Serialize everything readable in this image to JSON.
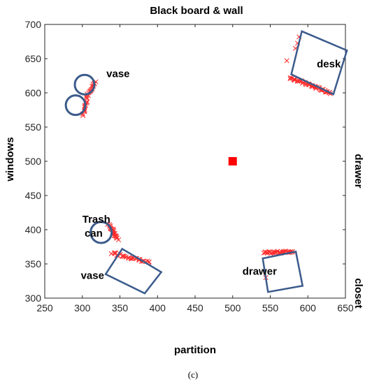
{
  "chart_data": {
    "type": "scatter",
    "title": "Black board & wall",
    "xlabel": "partition",
    "ylabel": "windows",
    "right_label_top": "drawer",
    "right_label_bottom": "closet",
    "caption": "(c)",
    "xlim": [
      250,
      650
    ],
    "ylim": [
      300,
      700
    ],
    "x_ticks": [
      250,
      300,
      350,
      400,
      450,
      500,
      550,
      600,
      650
    ],
    "y_ticks": [
      300,
      350,
      400,
      450,
      500,
      550,
      600,
      650,
      700
    ],
    "grid": false,
    "colors": {
      "obstacle": "#3b5b8b",
      "points": "#ff2a2a",
      "center": "#ff0000"
    },
    "center_point": {
      "x": 500,
      "y": 500
    },
    "circles": [
      {
        "name": "vase",
        "x": 303,
        "y": 612,
        "r": 13
      },
      {
        "name": "vase",
        "x": 291,
        "y": 582,
        "r": 13
      },
      {
        "name": "Trash can",
        "x": 325,
        "y": 396,
        "r": 14
      }
    ],
    "rectangles": [
      {
        "name": "desk",
        "corners": [
          [
            592,
            690
          ],
          [
            652,
            662
          ],
          [
            634,
            598
          ],
          [
            578,
            627
          ]
        ]
      },
      {
        "name": "drawer",
        "corners": [
          [
            540,
            358
          ],
          [
            584,
            368
          ],
          [
            593,
            318
          ],
          [
            547,
            309
          ]
        ]
      },
      {
        "name": "vase",
        "corners": [
          [
            331,
            335
          ],
          [
            353,
            372
          ],
          [
            405,
            338
          ],
          [
            383,
            307
          ]
        ]
      }
    ],
    "point_clusters": [
      {
        "from": [
          318,
          616
        ],
        "to": [
          305,
          594
        ],
        "n": 16
      },
      {
        "from": [
          307,
          590
        ],
        "to": [
          301,
          568
        ],
        "n": 12
      },
      {
        "from": [
          335,
          408
        ],
        "to": [
          347,
          386
        ],
        "n": 24
      },
      {
        "from": [
          340,
          366
        ],
        "to": [
          390,
          352
        ],
        "n": 30
      },
      {
        "from": [
          541,
          366
        ],
        "to": [
          580,
          368
        ],
        "n": 32
      },
      {
        "from": [
          544,
          330
        ],
        "to": [
          544,
          330
        ],
        "n": 1
      },
      {
        "from": [
          577,
          622
        ],
        "to": [
          630,
          600
        ],
        "n": 48
      },
      {
        "from": [
          585,
          665
        ],
        "to": [
          588,
          683
        ],
        "n": 3
      },
      {
        "from": [
          572,
          647
        ],
        "to": [
          572,
          647
        ],
        "n": 1
      }
    ],
    "annotations": [
      {
        "text": "vase",
        "x": 332,
        "y": 623
      },
      {
        "text": "desk",
        "x": 612,
        "y": 637
      },
      {
        "text": "Trash",
        "x": 300,
        "y": 410
      },
      {
        "text": "can",
        "x": 303,
        "y": 390
      },
      {
        "text": "vase",
        "x": 298,
        "y": 328
      },
      {
        "text": "drawer",
        "x": 513,
        "y": 334
      }
    ]
  }
}
